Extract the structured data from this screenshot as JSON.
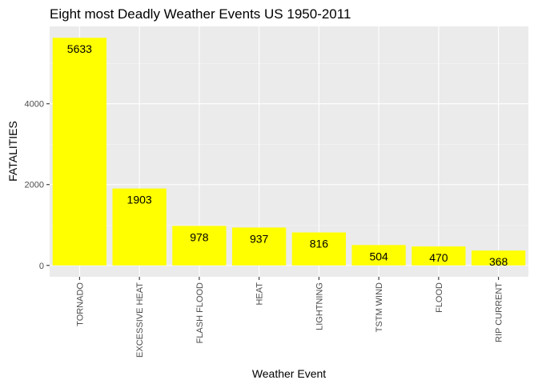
{
  "chart_data": {
    "type": "bar",
    "title": "Eight most Deadly Weather Events US 1950-2011",
    "xlabel": "Weather Event",
    "ylabel": "FATALITIES",
    "categories": [
      "TORNADO",
      "EXCESSIVE HEAT",
      "FLASH FLOOD",
      "HEAT",
      "LIGHTNING",
      "TSTM WIND",
      "FLOOD",
      "RIP CURRENT"
    ],
    "values": [
      5633,
      1903,
      978,
      937,
      816,
      504,
      470,
      368
    ],
    "data_labels": [
      "5633",
      "1903",
      "978",
      "937",
      "816",
      "504",
      "470",
      "368"
    ],
    "y_ticks": [
      0,
      2000,
      4000
    ],
    "y_tick_labels": [
      "0",
      "2000",
      "4000"
    ],
    "ylim": [
      -282,
      5915
    ],
    "grid": true,
    "legend": "none",
    "colors": {
      "bar_fill": "#FFFF00",
      "panel_background": "#EBEBEB",
      "grid_line": "#FFFFFF",
      "tick_text": "#4D4D4D",
      "tick_mark": "#333333",
      "text": "#000000"
    }
  }
}
